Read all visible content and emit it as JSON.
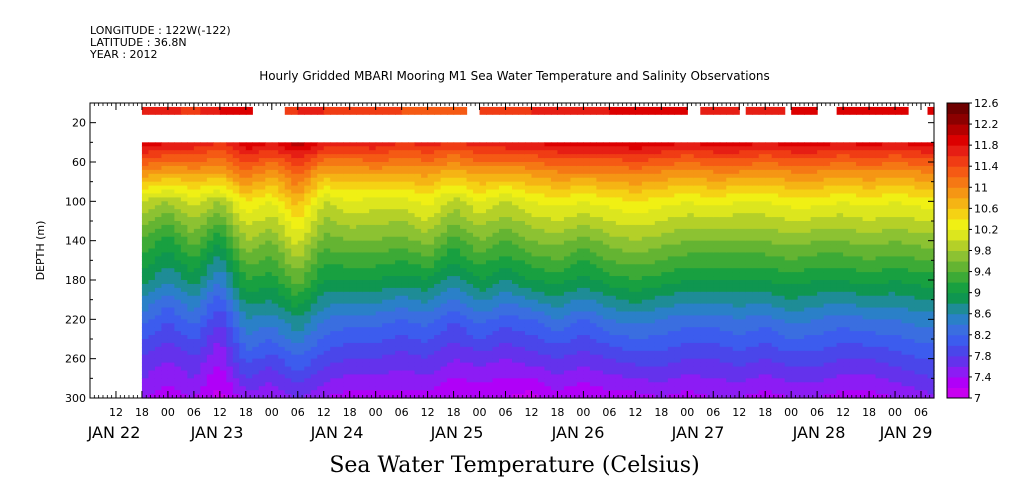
{
  "header": {
    "longitude": "LONGITUDE : 122W(-122)",
    "latitude": "LATITUDE : 36.8N",
    "year": "YEAR : 2012",
    "title": "Hourly Gridded MBARI Mooring M1 Sea Water Temperature and Salinity Observations"
  },
  "chart_data": {
    "type": "heatmap",
    "title": "Hourly Gridded MBARI Mooring M1 Sea Water Temperature and Salinity Observations",
    "variable_label": "Sea Water Temperature (Celsius)",
    "xlabel": "",
    "ylabel": "DEPTH (m)",
    "xlim_hours_from_jan22_00": [
      6,
      201
    ],
    "data_start_hour": 18,
    "ylim": [
      300,
      0
    ],
    "y_ticks": [
      20,
      60,
      100,
      140,
      180,
      220,
      260,
      300
    ],
    "x_hour_ticks": [
      "12",
      "18",
      "00",
      "06",
      "12",
      "18",
      "00",
      "06",
      "12",
      "18",
      "00",
      "06",
      "12",
      "18",
      "00",
      "06",
      "12",
      "18",
      "00",
      "06",
      "12",
      "18",
      "00",
      "06",
      "12",
      "18",
      "00",
      "06",
      "12",
      "18",
      "00",
      "06"
    ],
    "x_day_labels": [
      "JAN 22",
      "JAN 23",
      "JAN 24",
      "JAN 25",
      "JAN 26",
      "JAN 27",
      "JAN 28",
      "JAN 29"
    ],
    "colorbar_levels": [
      7,
      7.2,
      7.4,
      7.6,
      7.8,
      8,
      8.2,
      8.4,
      8.6,
      8.8,
      9,
      9.2,
      9.4,
      9.6,
      9.8,
      10,
      10.2,
      10.4,
      10.6,
      10.8,
      11,
      11.2,
      11.4,
      11.6,
      11.8,
      12,
      12.2,
      12.4,
      12.6
    ],
    "colorbar_labels": [
      "12.6",
      "12.2",
      "11.8",
      "11.4",
      "11",
      "10.6",
      "10.2",
      "9.8",
      "9.4",
      "9",
      "8.6",
      "8.2",
      "7.8",
      "7.4",
      "7"
    ],
    "palette": [
      "#c800f0",
      "#b000f8",
      "#8c1cf4",
      "#6432ec",
      "#4a46ea",
      "#3c5cee",
      "#3a6ee0",
      "#2a80c8",
      "#1e8c96",
      "#0f9650",
      "#18a040",
      "#3caa36",
      "#64b432",
      "#8cc232",
      "#b4d028",
      "#dce61e",
      "#f0f014",
      "#f5d214",
      "#f5b414",
      "#f59614",
      "#f57814",
      "#f55a14",
      "#f03c14",
      "#e61e14",
      "#dc0000",
      "#b40000",
      "#8c0000",
      "#6e0000"
    ],
    "surface_depth": 8,
    "series": [
      {
        "name": "surface",
        "points": [
          [
            18,
            11.8
          ],
          [
            24,
            11.7
          ],
          [
            30,
            11.5
          ],
          [
            36,
            11.8
          ],
          [
            42,
            11.9
          ],
          [
            48,
            11.5
          ],
          [
            54,
            11.6
          ],
          [
            60,
            11.6
          ],
          [
            66,
            11.4
          ],
          [
            72,
            11.5
          ],
          [
            78,
            11.4
          ],
          [
            84,
            11.3
          ],
          [
            90,
            11.3
          ],
          [
            96,
            11.4
          ],
          [
            102,
            11.5
          ],
          [
            108,
            11.6
          ],
          [
            114,
            11.6
          ],
          [
            120,
            11.7
          ],
          [
            126,
            11.8
          ],
          [
            132,
            11.8
          ],
          [
            138,
            11.9
          ],
          [
            144,
            11.8
          ],
          [
            150,
            11.7
          ],
          [
            156,
            11.8
          ],
          [
            162,
            11.7
          ],
          [
            168,
            11.8
          ],
          [
            174,
            11.9
          ],
          [
            180,
            11.8
          ],
          [
            186,
            11.9
          ],
          [
            192,
            11.8
          ],
          [
            198,
            11.9
          ],
          [
            201,
            11.8
          ]
        ]
      }
    ],
    "profiles": [
      {
        "hour": 18,
        "temps": [
          12.0,
          11.0,
          10.0,
          9.4,
          8.9,
          8.3,
          7.8,
          7.4
        ]
      },
      {
        "hour": 24,
        "temps": [
          11.8,
          10.8,
          9.8,
          9.1,
          8.6,
          8.0,
          7.6,
          7.3
        ]
      },
      {
        "hour": 30,
        "temps": [
          11.8,
          10.9,
          10.1,
          9.5,
          8.9,
          8.3,
          7.8,
          7.4
        ]
      },
      {
        "hour": 36,
        "temps": [
          11.6,
          10.8,
          9.8,
          9.0,
          8.4,
          7.8,
          7.4,
          7.1
        ]
      },
      {
        "hour": 42,
        "temps": [
          12.0,
          11.2,
          10.4,
          9.8,
          9.2,
          8.6,
          8.1,
          7.5
        ]
      },
      {
        "hour": 48,
        "temps": [
          11.8,
          10.9,
          10.2,
          9.6,
          9.1,
          8.5,
          7.9,
          7.4
        ]
      },
      {
        "hour": 54,
        "temps": [
          12.1,
          11.3,
          10.7,
          10.1,
          9.5,
          8.8,
          8.2,
          7.6
        ]
      },
      {
        "hour": 60,
        "temps": [
          11.8,
          10.8,
          10.0,
          9.5,
          9.0,
          8.4,
          7.9,
          7.4
        ]
      },
      {
        "hour": 66,
        "temps": [
          11.7,
          10.8,
          10.2,
          9.6,
          9.0,
          8.3,
          7.8,
          7.3
        ]
      },
      {
        "hour": 72,
        "temps": [
          11.8,
          10.9,
          10.1,
          9.6,
          9.0,
          8.3,
          7.8,
          7.3
        ]
      },
      {
        "hour": 78,
        "temps": [
          11.6,
          10.8,
          10.1,
          9.5,
          8.9,
          8.2,
          7.7,
          7.3
        ]
      },
      {
        "hour": 84,
        "temps": [
          11.7,
          10.9,
          10.3,
          9.7,
          9.0,
          8.3,
          7.8,
          7.3
        ]
      },
      {
        "hour": 90,
        "temps": [
          11.6,
          10.7,
          9.9,
          9.3,
          8.7,
          8.0,
          7.6,
          7.2
        ]
      },
      {
        "hour": 96,
        "temps": [
          11.7,
          10.9,
          10.2,
          9.6,
          9.0,
          8.3,
          7.7,
          7.2
        ]
      },
      {
        "hour": 102,
        "temps": [
          11.8,
          10.8,
          10.0,
          9.4,
          8.8,
          8.1,
          7.6,
          7.2
        ]
      },
      {
        "hour": 108,
        "temps": [
          11.8,
          10.9,
          10.2,
          9.6,
          9.0,
          8.2,
          7.7,
          7.1
        ]
      },
      {
        "hour": 114,
        "temps": [
          11.9,
          11.0,
          10.3,
          9.7,
          9.1,
          8.4,
          7.8,
          7.3
        ]
      },
      {
        "hour": 120,
        "temps": [
          11.9,
          11.0,
          10.2,
          9.5,
          8.9,
          8.2,
          7.7,
          7.2
        ]
      },
      {
        "hour": 126,
        "temps": [
          11.9,
          11.0,
          10.3,
          9.7,
          9.1,
          8.4,
          7.8,
          7.3
        ]
      },
      {
        "hour": 132,
        "temps": [
          12.0,
          11.1,
          10.4,
          9.8,
          9.2,
          8.5,
          7.9,
          7.3
        ]
      },
      {
        "hour": 138,
        "temps": [
          11.9,
          11.0,
          10.3,
          9.7,
          9.1,
          8.4,
          7.9,
          7.4
        ]
      },
      {
        "hour": 144,
        "temps": [
          11.8,
          10.9,
          10.2,
          9.6,
          9.0,
          8.3,
          7.8,
          7.3
        ]
      },
      {
        "hour": 150,
        "temps": [
          11.9,
          11.0,
          10.3,
          9.6,
          9.0,
          8.3,
          7.8,
          7.4
        ]
      },
      {
        "hour": 156,
        "temps": [
          11.9,
          11.0,
          10.2,
          9.6,
          9.0,
          8.4,
          7.9,
          7.4
        ]
      },
      {
        "hour": 162,
        "temps": [
          11.8,
          10.9,
          10.2,
          9.6,
          9.0,
          8.3,
          7.8,
          7.3
        ]
      },
      {
        "hour": 168,
        "temps": [
          11.9,
          11.0,
          10.3,
          9.7,
          9.1,
          8.5,
          7.9,
          7.4
        ]
      },
      {
        "hour": 174,
        "temps": [
          11.9,
          11.0,
          10.3,
          9.6,
          9.0,
          8.4,
          7.9,
          7.4
        ]
      },
      {
        "hour": 180,
        "temps": [
          11.8,
          10.9,
          10.2,
          9.6,
          9.0,
          8.3,
          7.8,
          7.3
        ]
      },
      {
        "hour": 186,
        "temps": [
          11.9,
          11.0,
          10.3,
          9.7,
          9.1,
          8.4,
          7.8,
          7.3
        ]
      },
      {
        "hour": 192,
        "temps": [
          11.8,
          10.9,
          10.2,
          9.6,
          9.0,
          8.4,
          7.9,
          7.4
        ]
      },
      {
        "hour": 198,
        "temps": [
          11.9,
          11.0,
          10.3,
          9.7,
          9.1,
          8.5,
          8.0,
          7.5
        ]
      },
      {
        "hour": 201,
        "temps": [
          11.9,
          11.0,
          10.3,
          9.7,
          9.1,
          8.5,
          8.0,
          7.6
        ]
      }
    ],
    "profile_depths": [
      40,
      70,
      100,
      140,
      180,
      220,
      260,
      300
    ],
    "surface_gaps": [
      [
        43,
        51
      ],
      [
        93,
        96
      ],
      [
        144,
        147
      ],
      [
        156,
        157
      ],
      [
        166,
        168
      ],
      [
        174,
        178
      ],
      [
        195,
        199
      ]
    ]
  }
}
